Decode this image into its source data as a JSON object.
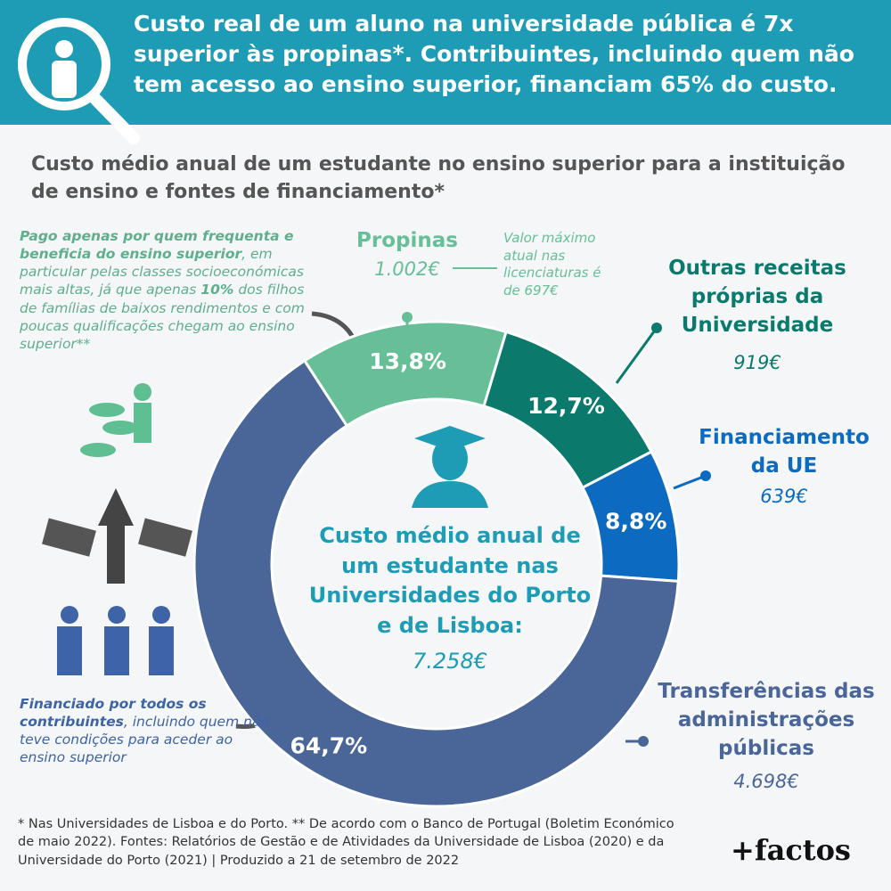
{
  "header": {
    "title": "Custo real de um aluno na universidade pública é 7x superior às propinas*. Contribuintes, incluindo quem não tem acesso ao ensino superior, financiam 65% do custo."
  },
  "chart_data": {
    "type": "donut",
    "subtitle": "Custo médio anual de um estudante no ensino superior para a instituição de ensino e fontes de financiamento*",
    "categories": [
      "Propinas",
      "Outras receitas próprias da Universidade",
      "Financiamento da UE",
      "Transferências das administrações públicas"
    ],
    "values": [
      13.8,
      12.7,
      8.8,
      64.7
    ],
    "value_labels": [
      "13,8%",
      "12,7%",
      "8,8%",
      "64,7%"
    ],
    "amount_labels": [
      "1.002€",
      "919€",
      "639€",
      "4.698€"
    ],
    "colors": [
      "#66bf97",
      "#0b7a6c",
      "#0c6bc0",
      "#4a6699"
    ],
    "center_text": "Custo médio anual de um estudante nas Universidades do Porto e de Lisboa:",
    "center_total": "7.258€",
    "propinas_note": "Valor máximo atual nas licenciaturas é de 697€"
  },
  "notes": {
    "left_top": [
      "Pago apenas por quem frequenta e beneficia do ensino superior",
      ", em particular pelas classes socioeconómicas mais altas, já que apenas ",
      "10%",
      " dos filhos de famílias de baixos rendimentos e com poucas qualificações chegam ao ensino superior**"
    ],
    "left_bottom": [
      "Financiado por todos os contribuintes",
      ", incluindo quem não teve condições para aceder ao ensino superior"
    ]
  },
  "footer": {
    "text": "* Nas Universidades de Lisboa e do Porto. ** De acordo com o Banco de Portugal (Boletim Económico de maio 2022). Fontes: Relatórios de Gestão e de Atividades da Universidade de Lisboa (2020) e da Universidade do Porto (2021) | Produzido a 21 de setembro de 2022",
    "logo": "+factos"
  }
}
